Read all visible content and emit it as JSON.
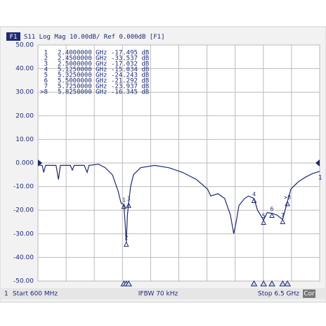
{
  "chart_data": {
    "type": "line",
    "channel": "F1",
    "title": "S11 Log Mag 10.00dB/ Ref 0.000dB [F1]",
    "footer": {
      "channel_number": "1",
      "start": "Start 600 MHz",
      "ifbw": "IFBW 70 kHz",
      "stop": "Stop 6.5 GHz",
      "correction": "Cor"
    },
    "xlim": [
      600,
      6500
    ],
    "xticks": [
      600,
      1190,
      1780,
      2370,
      2960,
      3550,
      4140,
      4730,
      5320,
      5910,
      6500
    ],
    "ylim": [
      -50,
      50
    ],
    "yticks": [
      {
        "value": 50,
        "label": "50.00"
      },
      {
        "value": 40,
        "label": "40.00"
      },
      {
        "value": 30,
        "label": "30.00"
      },
      {
        "value": 20,
        "label": "20.00"
      },
      {
        "value": 10,
        "label": "10.00"
      },
      {
        "value": 0,
        "label": "0.000"
      },
      {
        "value": -10,
        "label": "-10.00"
      },
      {
        "value": -20,
        "label": "-20.00"
      },
      {
        "value": -30,
        "label": "-30.00"
      },
      {
        "value": -40,
        "label": "-40.00"
      },
      {
        "value": -50,
        "label": "-50.00"
      }
    ],
    "grid": true,
    "x": [
      600,
      690,
      720,
      760,
      980,
      1030,
      1070,
      1280,
      1320,
      1360,
      1570,
      1630,
      1670,
      1870,
      2010,
      2160,
      2280,
      2340,
      2400,
      2425,
      2450,
      2475,
      2500,
      2540,
      2600,
      2750,
      3040,
      3340,
      3630,
      3920,
      4150,
      4220,
      4370,
      4510,
      4630,
      4700,
      4750,
      4810,
      4930,
      5010,
      5125,
      5200,
      5325,
      5400,
      5500,
      5600,
      5725,
      5825,
      5900,
      6050,
      6200,
      6350,
      6500
    ],
    "series": [
      {
        "label": "1",
        "color": "#1c2a78",
        "values": [
          -0.8,
          -1,
          -4,
          -1,
          -1,
          -7,
          -1,
          -1,
          -3,
          -1,
          -1,
          -4,
          -1,
          -0.5,
          -2,
          -5,
          -12,
          -17,
          -17.5,
          -25,
          -33.5,
          -22,
          -17,
          -10,
          -5,
          -2,
          -1,
          -2,
          -4,
          -7,
          -11,
          -14,
          -13,
          -15,
          -22,
          -30,
          -25,
          -18,
          -15,
          -14,
          -15,
          -20,
          -24.2,
          -21,
          -21.3,
          -22,
          -23.9,
          -16.3,
          -11,
          -8,
          -6,
          -4.5,
          -3.5
        ]
      }
    ],
    "markers": {
      "labels": [
        "1",
        "2",
        "3",
        "4",
        "5",
        "6",
        "7",
        ">8"
      ],
      "x": [
        2400,
        2450,
        2500,
        5125,
        5325,
        5500,
        5725,
        5825
      ],
      "x_labels": [
        "2.4000000 GHz",
        "2.4500000 GHz",
        "2.5000000 GHz",
        "5.1250000 GHz",
        "5.3250000 GHz",
        "5.5000000 GHz",
        "5.7250000 GHz",
        "5.8250000 GHz"
      ],
      "values": [
        -17.495,
        -33.537,
        -17.032,
        -15.034,
        -24.243,
        -21.292,
        -23.937,
        -16.345
      ],
      "value_labels": [
        "-17.495 dB",
        "-33.537 dB",
        "-17.032 dB",
        "-15.034 dB",
        "-24.243 dB",
        "-21.292 dB",
        "-23.937 dB",
        "-16.345 dB"
      ]
    }
  }
}
